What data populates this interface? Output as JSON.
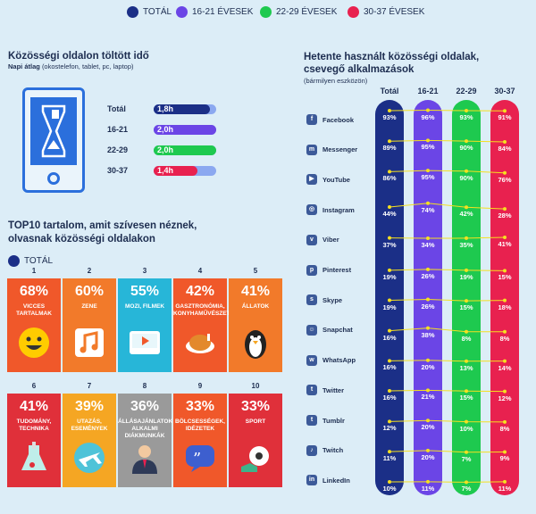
{
  "legend": [
    {
      "label": "TOTÁL",
      "color": "#1b2f87"
    },
    {
      "label": "16-21 ÉVESEK",
      "color": "#6b45e6"
    },
    {
      "label": "22-29 ÉVESEK",
      "color": "#1ec94f"
    },
    {
      "label": "30-37 ÉVESEK",
      "color": "#e8214f"
    }
  ],
  "time_section": {
    "title": "Közösségi oldalon töltött idő",
    "subtitle_bold": "Napi átlag",
    "subtitle_rest": "(okostelefon, tablet, pc, laptop)",
    "rows": [
      {
        "label": "Totál",
        "value": "1,8h",
        "fraction": 0.9,
        "color": "#1b2f87"
      },
      {
        "label": "16-21",
        "value": "2,0h",
        "fraction": 1.0,
        "color": "#6b45e6"
      },
      {
        "label": "22-29",
        "value": "2,0h",
        "fraction": 1.0,
        "color": "#1ec94f"
      },
      {
        "label": "30-37",
        "value": "1,4h",
        "fraction": 0.7,
        "color": "#e8214f"
      }
    ]
  },
  "top10": {
    "title_line1": "TOP10 tartalom, amit szívesen néznek,",
    "title_line2": "olvasnak közösségi oldalakon",
    "legend_label": "TOTÁL",
    "items": [
      {
        "num": "1",
        "pct": "68%",
        "label": "VICCES TARTALMAK",
        "color": "#f0582a",
        "icon": "smiley-icon"
      },
      {
        "num": "2",
        "pct": "60%",
        "label": "ZENE",
        "color": "#f27a2a",
        "icon": "music-icon"
      },
      {
        "num": "3",
        "pct": "55%",
        "label": "MOZI, FILMEK",
        "color": "#27b6d8",
        "icon": "video-icon"
      },
      {
        "num": "4",
        "pct": "42%",
        "label": "GASZTRONÓMIA, KONYHAMŰVÉSZET",
        "color": "#f0582a",
        "icon": "chicken-icon"
      },
      {
        "num": "5",
        "pct": "41%",
        "label": "ÁLLATOK",
        "color": "#f27a2a",
        "icon": "penguin-icon"
      },
      {
        "num": "6",
        "pct": "41%",
        "label": "TUDOMÁNY, TECHNIKA",
        "color": "#e0303a",
        "icon": "flask-icon"
      },
      {
        "num": "7",
        "pct": "39%",
        "label": "UTAZÁS, ESEMÉNYEK",
        "color": "#f5a623",
        "icon": "airplane-icon"
      },
      {
        "num": "8",
        "pct": "36%",
        "label": "ÁLLÁSAJÁNLATOK ALKALMI DIÁKMUNKÁK",
        "color": "#9a9a9a",
        "icon": "person-icon"
      },
      {
        "num": "9",
        "pct": "33%",
        "label": "BÖLCSESSÉGEK, IDÉZETEK",
        "color": "#f0582a",
        "icon": "quote-icon"
      },
      {
        "num": "10",
        "pct": "33%",
        "label": "SPORT",
        "color": "#e0303a",
        "icon": "soccer-icon"
      }
    ]
  },
  "weekly": {
    "title_line1": "Hetente használt közösségi oldalak,",
    "title_line2": "csevegő alkalmazások",
    "subtitle": "(bármilyen eszközön)"
  },
  "chart_data": {
    "type": "line",
    "categories": [
      "Facebook",
      "Messenger",
      "YouTube",
      "Instagram",
      "Viber",
      "Pinterest",
      "Skype",
      "Snapchat",
      "WhatsApp",
      "Twitter",
      "Tumblr",
      "Twitch",
      "LinkedIn"
    ],
    "icons": [
      "f",
      "m",
      "▶",
      "◎",
      "v",
      "p",
      "s",
      "☺",
      "w",
      "t",
      "t",
      "♪",
      "in"
    ],
    "series": [
      {
        "name": "Totál",
        "color": "#1b2f87",
        "values": [
          93,
          89,
          86,
          44,
          37,
          19,
          19,
          16,
          16,
          16,
          12,
          11,
          10
        ],
        "labels": [
          "93%",
          "89%",
          "86%",
          "44%",
          "37%",
          "19%",
          "19%",
          "16%",
          "16%",
          "16%",
          "12%",
          "11%",
          "10%"
        ]
      },
      {
        "name": "16-21",
        "color": "#6b45e6",
        "values": [
          96,
          95,
          95,
          74,
          34,
          26,
          26,
          38,
          20,
          21,
          20,
          20,
          11
        ],
        "labels": [
          "96%",
          "95%",
          "95%",
          "74%",
          "34%",
          "26%",
          "26%",
          "38%",
          "20%",
          "21%",
          "20%",
          "20%",
          "11%"
        ]
      },
      {
        "name": "22-29",
        "color": "#1ec94f",
        "values": [
          93,
          90,
          90,
          42,
          35,
          19,
          15,
          8,
          13,
          15,
          10,
          7,
          7
        ],
        "labels": [
          "93%",
          "90%",
          "90%",
          "42%",
          "35%",
          "19%",
          "15%",
          "8%",
          "13%",
          "15%",
          "10%",
          "7%",
          "7%"
        ]
      },
      {
        "name": "30-37",
        "color": "#e8214f",
        "values": [
          91,
          84,
          76,
          28,
          41,
          15,
          18,
          8,
          14,
          12,
          8,
          9,
          11
        ],
        "labels": [
          "91%",
          "84%",
          "76%",
          "28%",
          "41%",
          "15%",
          "18%",
          "8%",
          "14%",
          "12%",
          "8%",
          "9%",
          "11%"
        ]
      }
    ]
  }
}
